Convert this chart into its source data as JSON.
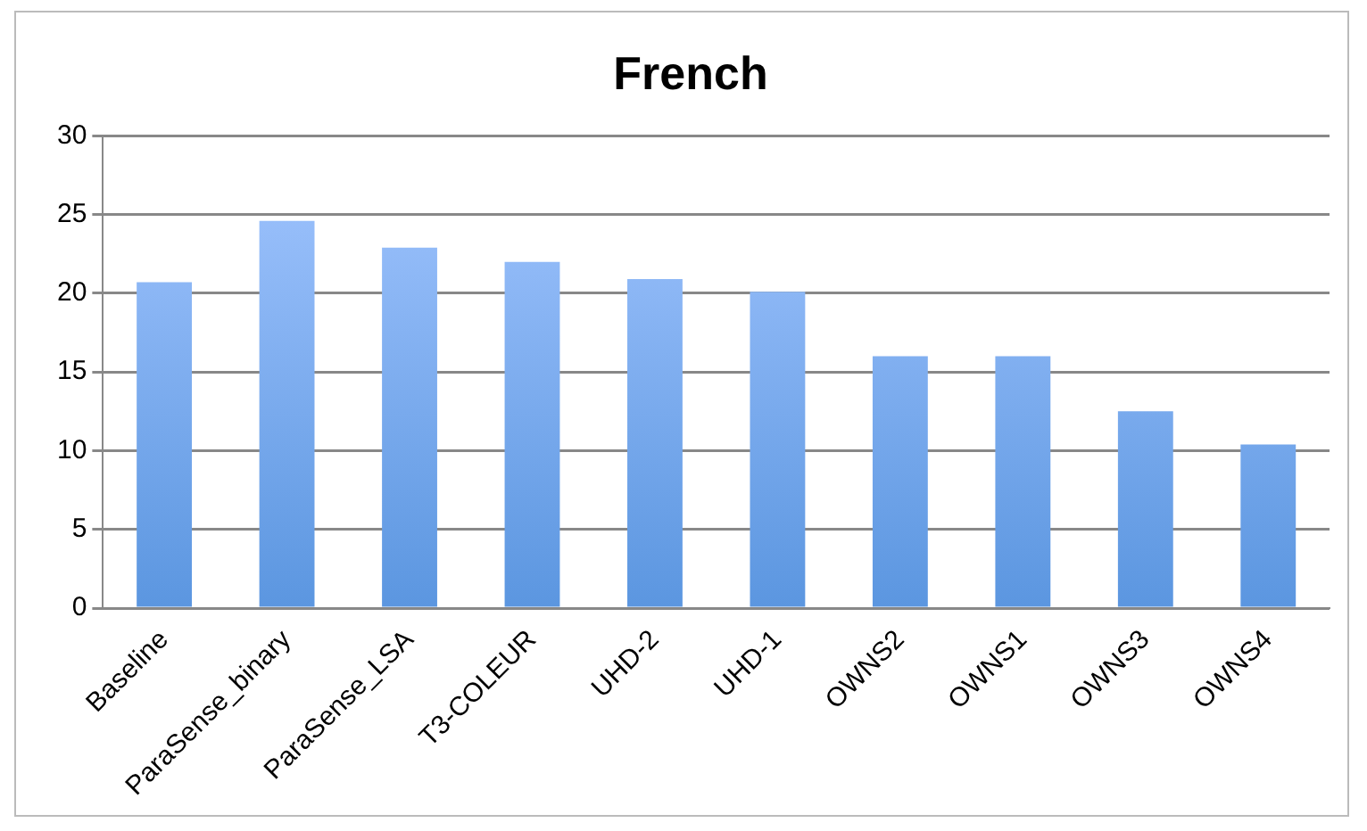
{
  "chart_data": {
    "type": "bar",
    "title": "French",
    "categories": [
      "Baseline",
      "ParaSense_binary",
      "ParaSense_LSA",
      "T3-COLEUR",
      "UHD-2",
      "UHD-1",
      "OWNS2",
      "OWNS1",
      "OWNS3",
      "OWNS4"
    ],
    "values": [
      20.7,
      24.6,
      22.9,
      22.0,
      20.9,
      20.1,
      16.0,
      16.0,
      12.5,
      10.4
    ],
    "color": "#5b96e0",
    "ylim": [
      0,
      30
    ],
    "yticks": [
      0,
      5,
      10,
      15,
      20,
      25,
      30
    ],
    "grid": "y",
    "legend": false
  }
}
